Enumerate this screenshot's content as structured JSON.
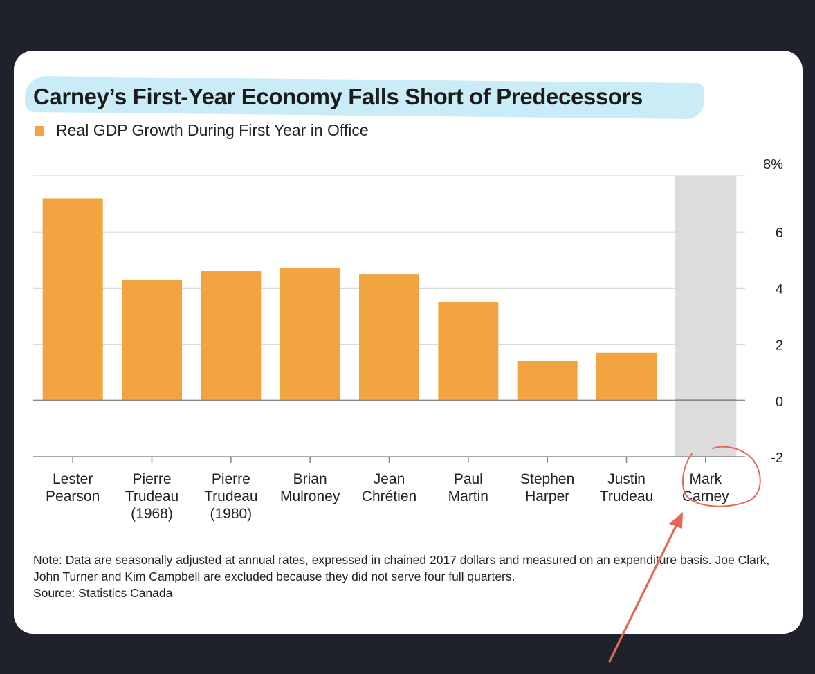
{
  "chart_data": {
    "type": "bar",
    "title": "Carney’s First-Year Economy Falls Short of Predecessors",
    "legend": [
      {
        "name": "Real GDP Growth During First Year in Office",
        "color": "#f2a441"
      }
    ],
    "categories": [
      [
        "Lester",
        "Pearson"
      ],
      [
        "Pierre",
        "Trudeau",
        "(1968)"
      ],
      [
        "Pierre",
        "Trudeau",
        "(1980)"
      ],
      [
        "Brian",
        "Mulroney"
      ],
      [
        "Jean",
        "Chrétien"
      ],
      [
        "Paul",
        "Martin"
      ],
      [
        "Stephen",
        "Harper"
      ],
      [
        "Justin",
        "Trudeau"
      ],
      [
        "Mark",
        "Carney"
      ]
    ],
    "values": [
      7.2,
      4.3,
      4.6,
      4.7,
      4.5,
      3.5,
      1.4,
      1.7,
      0.05
    ],
    "highlight_index": 8,
    "ylim": [
      -2,
      8
    ],
    "yticks": [
      "8%",
      "6",
      "4",
      "2",
      "0",
      "-2"
    ],
    "ytick_values": [
      8,
      6,
      4,
      2,
      0,
      -2
    ],
    "grid": true,
    "bar_color": "#f2a441",
    "highlight_color": "#dcdcdc",
    "legend_position": "top-left"
  },
  "notes": {
    "note": "Note: Data are seasonally adjusted at annual rates, expressed in chained 2017 dollars and measured on an expenditure basis. Joe Clark, John Turner and Kim Campbell are excluded because they did not serve four full quarters.",
    "source": "Source: Statistics Canada"
  },
  "annotation_color": "#e06a55"
}
